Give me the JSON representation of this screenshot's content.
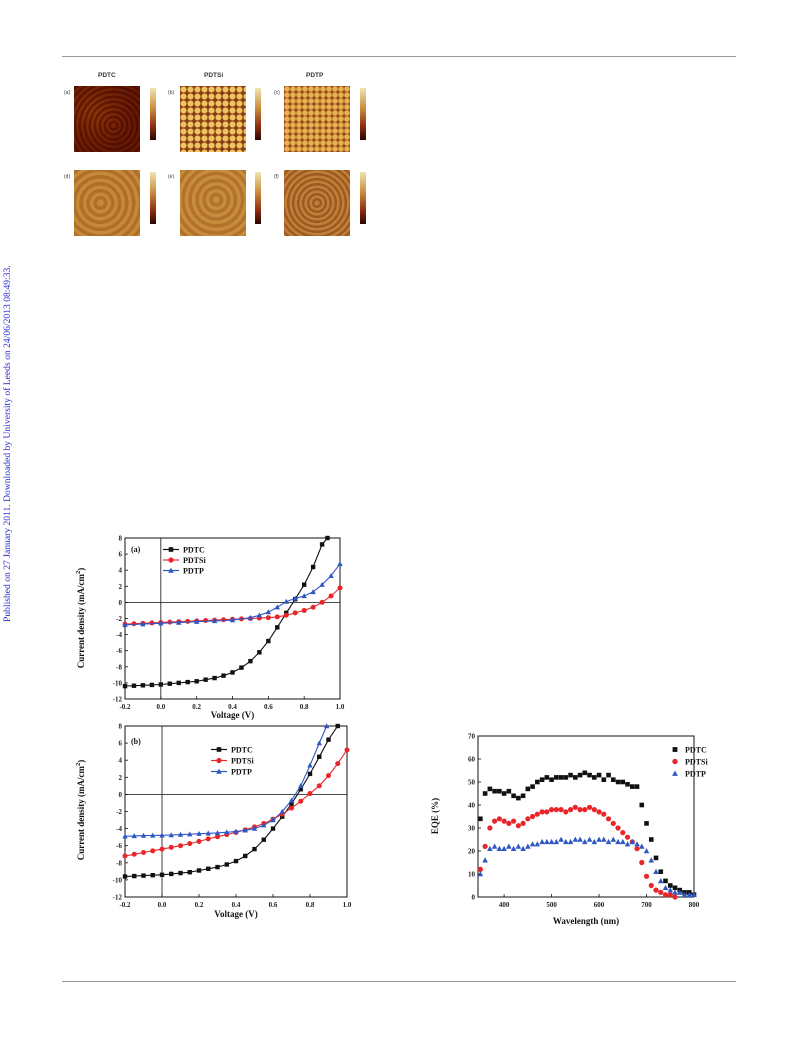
{
  "sidebar_text": "Published on 27 January 2011. Downloaded by University of Leeds on 24/06/2013 08:49:33.",
  "afm": {
    "headers": [
      "PDTC",
      "PDTSi",
      "PDTP"
    ],
    "panel_labels": [
      "(a)",
      "(b)",
      "(c)",
      "(d)",
      "(e)",
      "(f)"
    ]
  },
  "colors": {
    "PDTC": "#111111",
    "PDTSi": "#e8262a",
    "PDTP": "#2f57c4",
    "sidebar": "#2b2bd0"
  },
  "chart_data": [
    {
      "type": "line",
      "panel": "(a)",
      "xlabel": "Voltage (V)",
      "ylabel": "Current density (mA/cm2)",
      "xlim": [
        -0.2,
        1.0
      ],
      "ylim": [
        -12,
        8
      ],
      "xticks": [
        "-0.2",
        "0.0",
        "0.2",
        "0.4",
        "0.6",
        "0.8",
        "1.0"
      ],
      "yticks": [
        "-12",
        "-10",
        "-8",
        "-6",
        "-4",
        "-2",
        "0",
        "2",
        "4",
        "6",
        "8"
      ],
      "legend_position": "top-left",
      "series": [
        {
          "name": "PDTC",
          "marker": "square",
          "x": [
            -0.2,
            -0.15,
            -0.1,
            -0.05,
            0.0,
            0.05,
            0.1,
            0.15,
            0.2,
            0.25,
            0.3,
            0.35,
            0.4,
            0.45,
            0.5,
            0.55,
            0.6,
            0.65,
            0.7,
            0.75,
            0.8,
            0.85,
            0.9,
            0.93
          ],
          "y": [
            -10.4,
            -10.35,
            -10.3,
            -10.25,
            -10.2,
            -10.1,
            -10.0,
            -9.9,
            -9.8,
            -9.6,
            -9.4,
            -9.1,
            -8.7,
            -8.1,
            -7.3,
            -6.2,
            -4.8,
            -3.1,
            -1.3,
            0.4,
            2.2,
            4.4,
            7.2,
            8.0
          ]
        },
        {
          "name": "PDTSi",
          "marker": "circle",
          "x": [
            -0.2,
            -0.15,
            -0.1,
            -0.05,
            0.0,
            0.05,
            0.1,
            0.15,
            0.2,
            0.25,
            0.3,
            0.35,
            0.4,
            0.45,
            0.5,
            0.55,
            0.6,
            0.65,
            0.7,
            0.75,
            0.8,
            0.85,
            0.9,
            0.95,
            1.0
          ],
          "y": [
            -2.7,
            -2.65,
            -2.6,
            -2.55,
            -2.5,
            -2.45,
            -2.4,
            -2.35,
            -2.3,
            -2.25,
            -2.2,
            -2.15,
            -2.1,
            -2.05,
            -2.0,
            -1.95,
            -1.9,
            -1.8,
            -1.6,
            -1.3,
            -1.0,
            -0.6,
            0.0,
            0.8,
            1.8
          ]
        },
        {
          "name": "PDTP",
          "marker": "triangle",
          "x": [
            -0.2,
            -0.1,
            0.0,
            0.1,
            0.2,
            0.3,
            0.4,
            0.5,
            0.55,
            0.6,
            0.65,
            0.7,
            0.75,
            0.8,
            0.85,
            0.9,
            0.95,
            1.0
          ],
          "y": [
            -2.8,
            -2.7,
            -2.6,
            -2.5,
            -2.4,
            -2.3,
            -2.2,
            -1.9,
            -1.6,
            -1.2,
            -0.6,
            0.1,
            0.5,
            0.8,
            1.3,
            2.2,
            3.3,
            4.8
          ]
        }
      ]
    },
    {
      "type": "line",
      "panel": "(b)",
      "xlabel": "Voltage (V)",
      "ylabel": "Current density (mA/cm2)",
      "xlim": [
        -0.2,
        1.0
      ],
      "ylim": [
        -12,
        8
      ],
      "xticks": [
        "-0.2",
        "0.0",
        "0.2",
        "0.4",
        "0.6",
        "0.8",
        "1.0"
      ],
      "yticks": [
        "-12",
        "-10",
        "-8",
        "-6",
        "-4",
        "-2",
        "0",
        "2",
        "4",
        "6",
        "8"
      ],
      "legend_position": "top-center",
      "series": [
        {
          "name": "PDTC",
          "marker": "square",
          "x": [
            -0.2,
            -0.15,
            -0.1,
            -0.05,
            0.0,
            0.05,
            0.1,
            0.15,
            0.2,
            0.25,
            0.3,
            0.35,
            0.4,
            0.45,
            0.5,
            0.55,
            0.6,
            0.65,
            0.7,
            0.75,
            0.8,
            0.85,
            0.9,
            0.95
          ],
          "y": [
            -9.6,
            -9.55,
            -9.5,
            -9.45,
            -9.4,
            -9.3,
            -9.2,
            -9.1,
            -8.9,
            -8.7,
            -8.5,
            -8.2,
            -7.8,
            -7.2,
            -6.4,
            -5.3,
            -4.0,
            -2.6,
            -1.1,
            0.6,
            2.4,
            4.4,
            6.4,
            8.0
          ]
        },
        {
          "name": "PDTSi",
          "marker": "circle",
          "x": [
            -0.2,
            -0.15,
            -0.1,
            -0.05,
            0.0,
            0.05,
            0.1,
            0.15,
            0.2,
            0.25,
            0.3,
            0.35,
            0.4,
            0.45,
            0.5,
            0.55,
            0.6,
            0.65,
            0.7,
            0.75,
            0.8,
            0.85,
            0.9,
            0.95,
            1.0
          ],
          "y": [
            -7.2,
            -7.0,
            -6.8,
            -6.6,
            -6.4,
            -6.2,
            -6.0,
            -5.75,
            -5.5,
            -5.2,
            -4.95,
            -4.7,
            -4.45,
            -4.15,
            -3.8,
            -3.4,
            -2.9,
            -2.3,
            -1.6,
            -0.8,
            0.1,
            1.0,
            2.2,
            3.6,
            5.2
          ]
        },
        {
          "name": "PDTP",
          "marker": "triangle",
          "x": [
            -0.2,
            -0.15,
            -0.1,
            -0.05,
            0.0,
            0.05,
            0.1,
            0.15,
            0.2,
            0.25,
            0.3,
            0.35,
            0.4,
            0.45,
            0.5,
            0.55,
            0.6,
            0.65,
            0.7,
            0.75,
            0.8,
            0.85,
            0.89
          ],
          "y": [
            -4.9,
            -4.85,
            -4.82,
            -4.8,
            -4.78,
            -4.75,
            -4.7,
            -4.65,
            -4.6,
            -4.55,
            -4.5,
            -4.42,
            -4.35,
            -4.2,
            -4.0,
            -3.6,
            -3.0,
            -2.0,
            -0.7,
            1.0,
            3.4,
            6.0,
            8.0
          ]
        }
      ]
    },
    {
      "type": "scatter",
      "panel": "",
      "xlabel": "Wavelength (nm)",
      "ylabel": "EQE (%)",
      "xlim": [
        345,
        800
      ],
      "ylim": [
        0,
        70
      ],
      "xticks": [
        "400",
        "500",
        "600",
        "700",
        "800"
      ],
      "yticks": [
        "0",
        "10",
        "20",
        "30",
        "40",
        "50",
        "60",
        "70"
      ],
      "legend_position": "top-right",
      "series": [
        {
          "name": "PDTC",
          "marker": "square",
          "x": [
            350,
            360,
            370,
            380,
            390,
            400,
            410,
            420,
            430,
            440,
            450,
            460,
            470,
            480,
            490,
            500,
            510,
            520,
            530,
            540,
            550,
            560,
            570,
            580,
            590,
            600,
            610,
            620,
            630,
            640,
            650,
            660,
            670,
            680,
            690,
            700,
            710,
            720,
            730,
            740,
            750,
            760,
            770,
            780,
            790,
            800
          ],
          "y": [
            34,
            45,
            47,
            46,
            46,
            45,
            46,
            44,
            43,
            44,
            47,
            48,
            50,
            51,
            52,
            51,
            52,
            52,
            52,
            53,
            52,
            53,
            54,
            53,
            52,
            53,
            51,
            53,
            51,
            50,
            50,
            49,
            48,
            48,
            40,
            32,
            25,
            17,
            11,
            7,
            5,
            4,
            3,
            2,
            2,
            1
          ]
        },
        {
          "name": "PDTSi",
          "marker": "circle",
          "x": [
            350,
            360,
            370,
            380,
            390,
            400,
            410,
            420,
            430,
            440,
            450,
            460,
            470,
            480,
            490,
            500,
            510,
            520,
            530,
            540,
            550,
            560,
            570,
            580,
            590,
            600,
            610,
            620,
            630,
            640,
            650,
            660,
            670,
            680,
            690,
            700,
            710,
            720,
            730,
            740,
            750,
            760
          ],
          "y": [
            12,
            22,
            30,
            33,
            34,
            33,
            32,
            33,
            31,
            32,
            34,
            35,
            36,
            37,
            37,
            38,
            38,
            38,
            37,
            38,
            39,
            38,
            38,
            39,
            38,
            37,
            36,
            34,
            32,
            30,
            28,
            26,
            24,
            21,
            15,
            9,
            5,
            3,
            2,
            1,
            1,
            0
          ]
        },
        {
          "name": "PDTP",
          "marker": "triangle",
          "x": [
            350,
            360,
            370,
            380,
            390,
            400,
            410,
            420,
            430,
            440,
            450,
            460,
            470,
            480,
            490,
            500,
            510,
            520,
            530,
            540,
            550,
            560,
            570,
            580,
            590,
            600,
            610,
            620,
            630,
            640,
            650,
            660,
            670,
            680,
            690,
            700,
            710,
            720,
            730,
            740,
            750,
            760,
            770,
            780,
            790,
            800
          ],
          "y": [
            10,
            16,
            21,
            22,
            21,
            21,
            22,
            21,
            22,
            21,
            22,
            23,
            23,
            24,
            24,
            24,
            24,
            25,
            24,
            24,
            25,
            25,
            24,
            25,
            24,
            25,
            25,
            24,
            25,
            24,
            24,
            23,
            24,
            23,
            22,
            20,
            16,
            11,
            7,
            4,
            3,
            2,
            2,
            1,
            1,
            1
          ]
        }
      ]
    }
  ]
}
